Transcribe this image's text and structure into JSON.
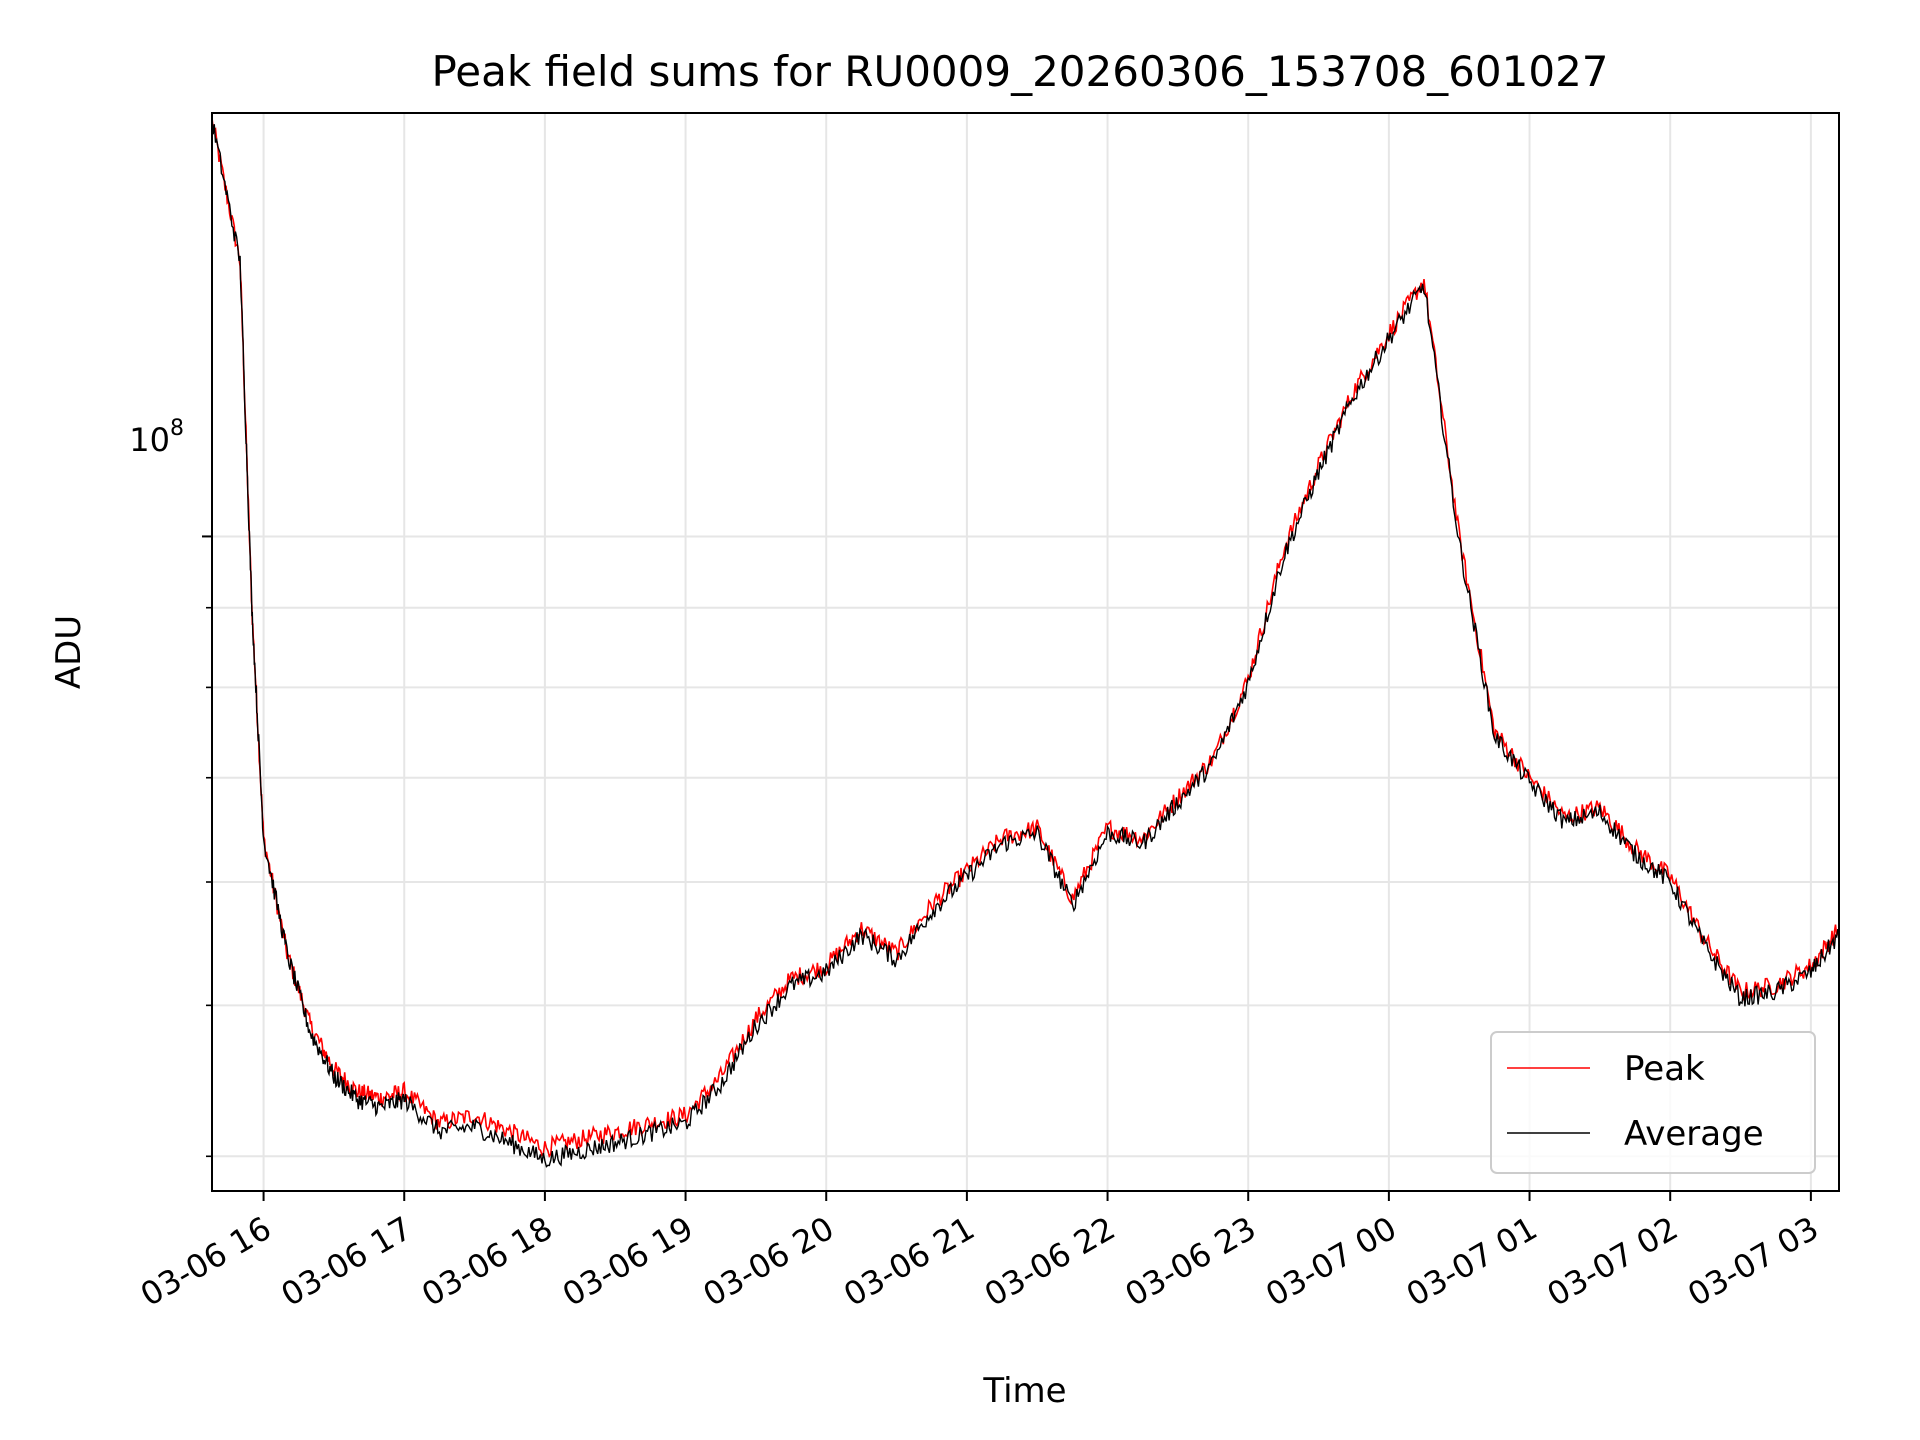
{
  "chart_data": {
    "type": "line",
    "title": "Peak field sums for RU0009_20260306_153708_601027",
    "xlabel": "Time",
    "ylabel": "ADU",
    "yscale": "log",
    "xlim": [
      "2026-03-06 15:38",
      "2026-03-07 03:12"
    ],
    "ylim": [
      38000000,
      187000000
    ],
    "grid": true,
    "legend_position": "lower-right",
    "x_ticks": [
      "03-06 16",
      "03-06 17",
      "03-06 18",
      "03-06 19",
      "03-06 20",
      "03-06 21",
      "03-06 22",
      "03-06 23",
      "03-07 00",
      "03-07 01",
      "03-07 02",
      "03-07 03"
    ],
    "y_tick_label": {
      "base": "10",
      "exponent": "8"
    },
    "x": [
      "2026-03-06 15:38",
      "2026-03-06 15:50",
      "2026-03-06 15:55",
      "2026-03-06 16:00",
      "2026-03-06 16:10",
      "2026-03-06 16:20",
      "2026-03-06 16:30",
      "2026-03-06 16:40",
      "2026-03-06 16:50",
      "2026-03-06 17:00",
      "2026-03-06 17:15",
      "2026-03-06 17:30",
      "2026-03-06 17:45",
      "2026-03-06 18:00",
      "2026-03-06 18:15",
      "2026-03-06 18:30",
      "2026-03-06 18:45",
      "2026-03-06 19:00",
      "2026-03-06 19:15",
      "2026-03-06 19:30",
      "2026-03-06 19:45",
      "2026-03-06 20:00",
      "2026-03-06 20:15",
      "2026-03-06 20:30",
      "2026-03-06 20:45",
      "2026-03-06 21:00",
      "2026-03-06 21:15",
      "2026-03-06 21:30",
      "2026-03-06 21:45",
      "2026-03-06 22:00",
      "2026-03-06 22:15",
      "2026-03-06 22:30",
      "2026-03-06 22:45",
      "2026-03-06 23:00",
      "2026-03-06 23:15",
      "2026-03-06 23:30",
      "2026-03-06 23:45",
      "2026-03-07 00:00",
      "2026-03-07 00:15",
      "2026-03-07 00:30",
      "2026-03-07 00:45",
      "2026-03-07 01:00",
      "2026-03-07 01:15",
      "2026-03-07 01:30",
      "2026-03-07 01:45",
      "2026-03-07 02:00",
      "2026-03-07 02:15",
      "2026-03-07 02:30",
      "2026-03-07 02:45",
      "2026-03-07 03:00",
      "2026-03-07 03:12"
    ],
    "series": [
      {
        "name": "Peak",
        "color": "#ff0000",
        "values": [
          185000000,
          150000000,
          90000000,
          64000000,
          54000000,
          48500000,
          45500000,
          44000000,
          43600000,
          44000000,
          42000000,
          42500000,
          41500000,
          40500000,
          41000000,
          41500000,
          42000000,
          42500000,
          45000000,
          49000000,
          52000000,
          53000000,
          56000000,
          54000000,
          58000000,
          61000000,
          64000000,
          65000000,
          58500000,
          65000000,
          64000000,
          68000000,
          72000000,
          81000000,
          98000000,
          111000000,
          124000000,
          135000000,
          146000000,
          100000000,
          75000000,
          70000000,
          66000000,
          67000000,
          63000000,
          60500000,
          55000000,
          51000000,
          51500000,
          53000000,
          56000000
        ]
      },
      {
        "name": "Average",
        "color": "#000000",
        "values": [
          185000000,
          150000000,
          90000000,
          64000000,
          54000000,
          48000000,
          45000000,
          43500000,
          43000000,
          43500000,
          41500000,
          41800000,
          40800000,
          39800000,
          40300000,
          40800000,
          41400000,
          42000000,
          44500000,
          48500000,
          51500000,
          52500000,
          55500000,
          53500000,
          57500000,
          60500000,
          63500000,
          64500000,
          58000000,
          64500000,
          63500000,
          67500000,
          71500000,
          80500000,
          97000000,
          110000000,
          123000000,
          134000000,
          145000000,
          99000000,
          74500000,
          69500000,
          65500000,
          66500000,
          62500000,
          60000000,
          54500000,
          50500000,
          51000000,
          52500000,
          55500000
        ]
      }
    ]
  },
  "legend": {
    "peak_label": "Peak",
    "average_label": "Average"
  }
}
